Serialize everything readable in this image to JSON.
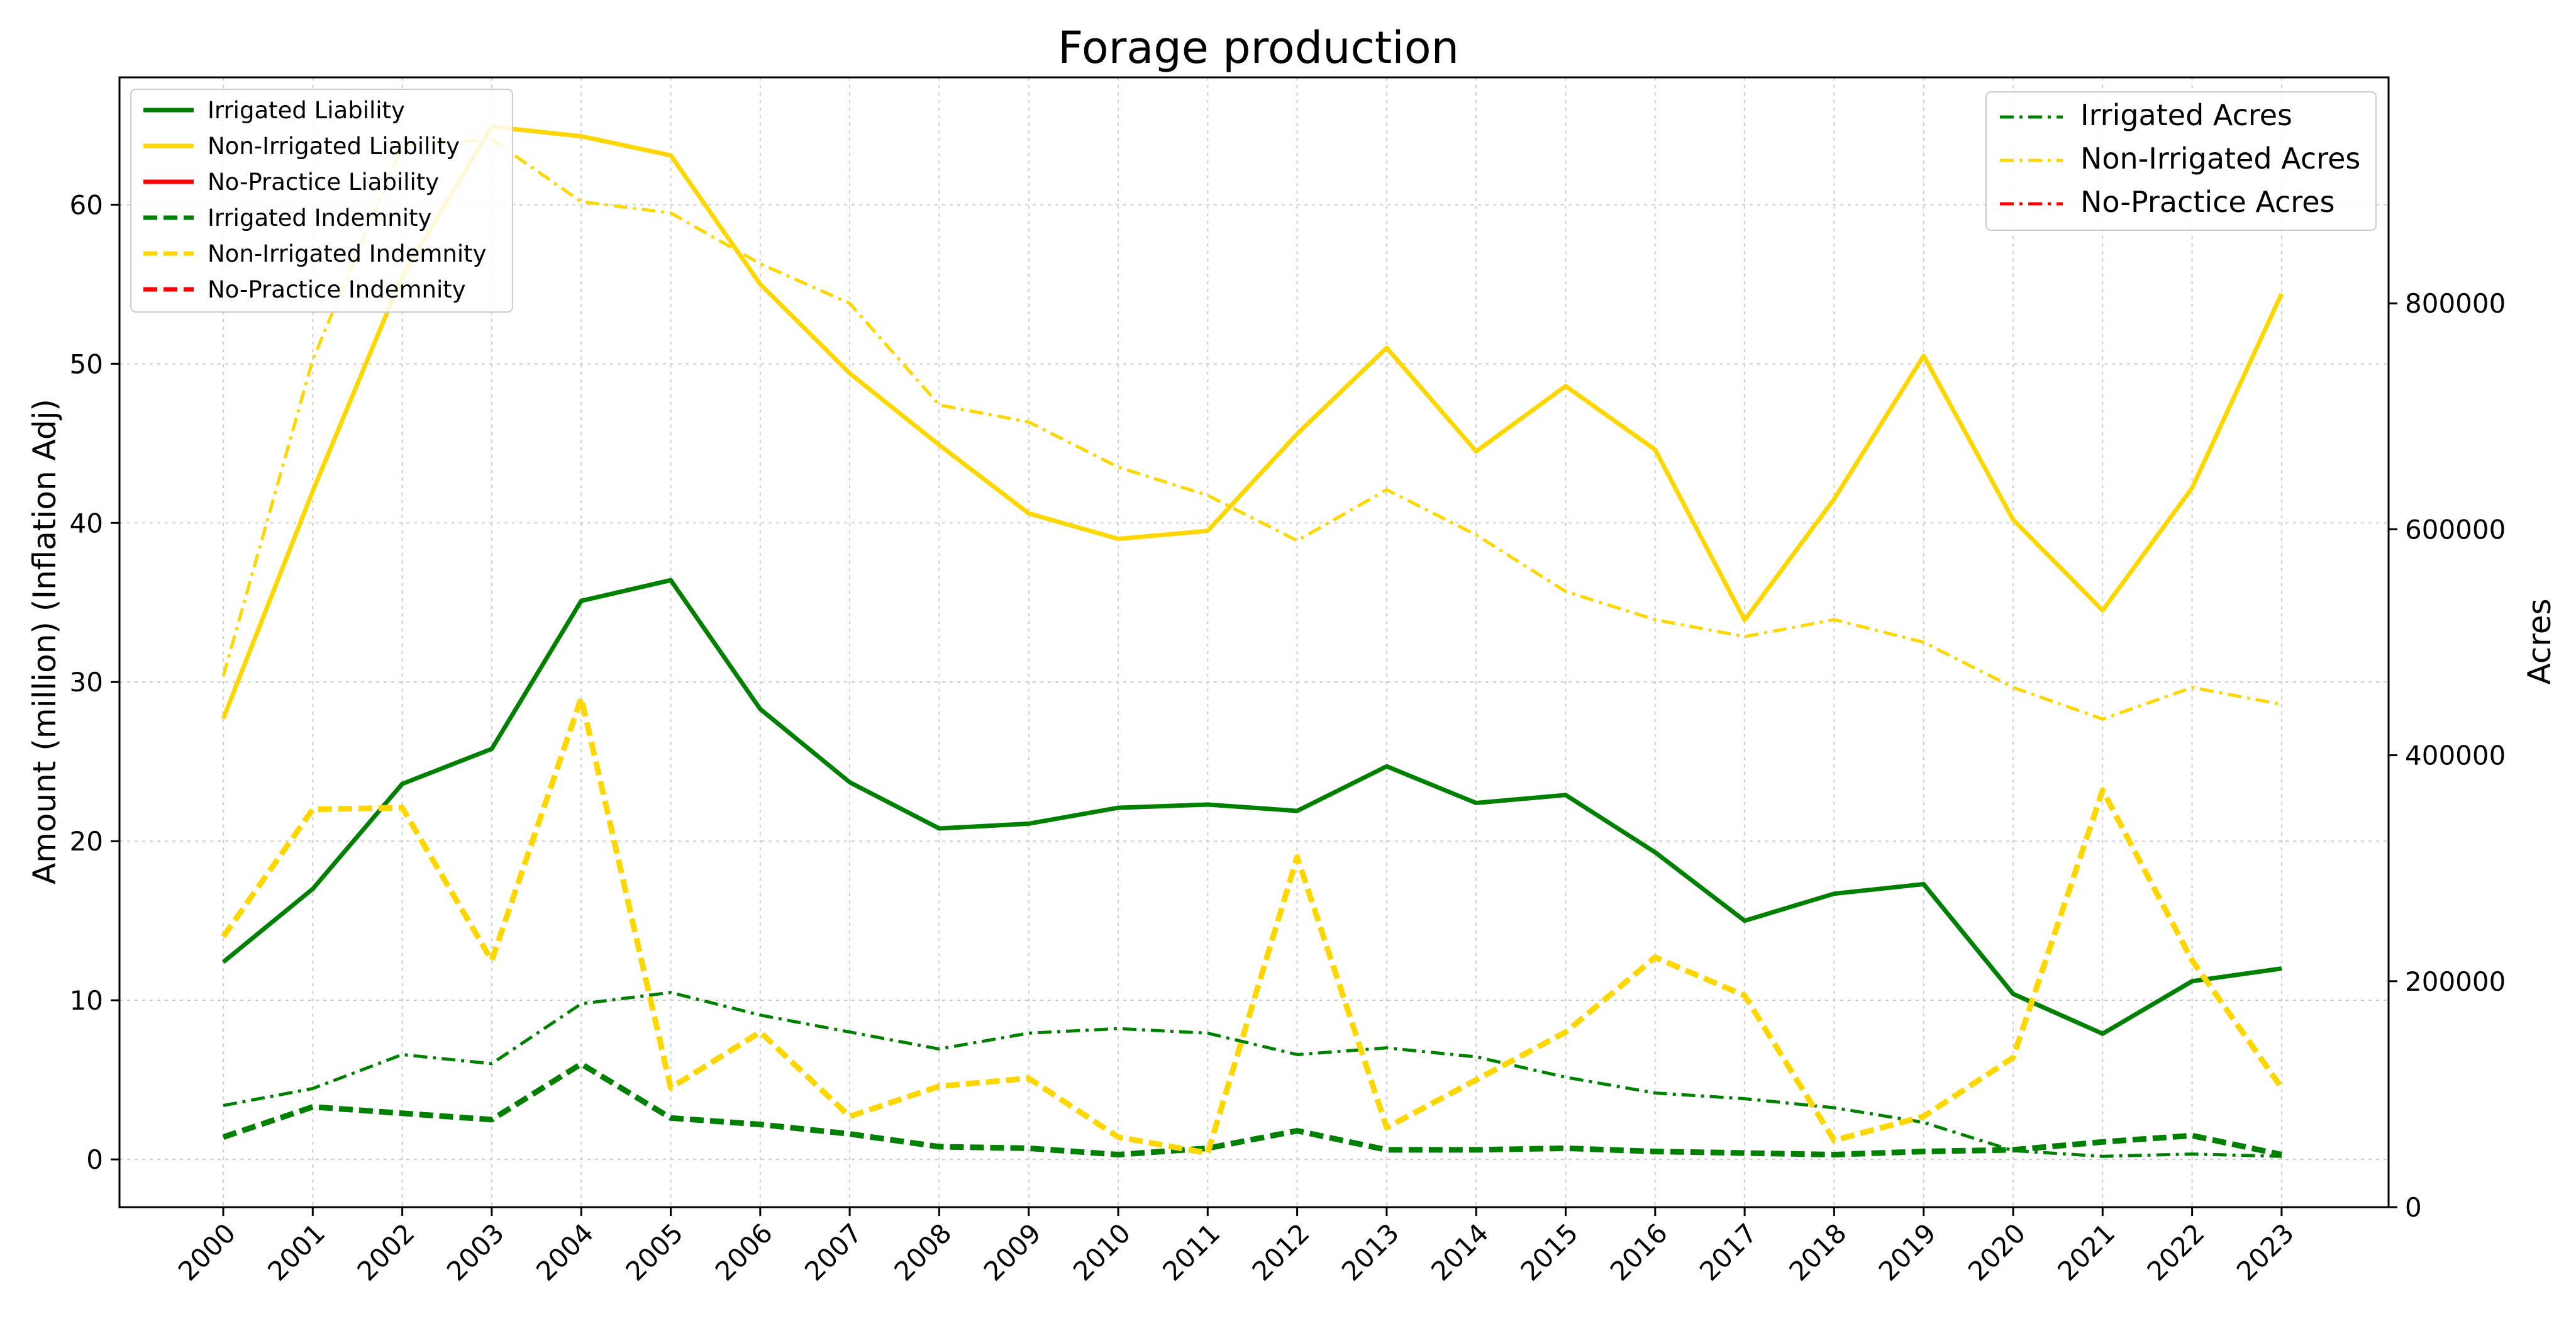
{
  "chart_data": {
    "type": "line",
    "title": "Forage production",
    "xlabel": "",
    "ylabel": "Amount (million) (Inflation Adj)",
    "ylabel_right": "Acres",
    "ylim": [
      -3,
      68
    ],
    "ylim_right": [
      0,
      1000000
    ],
    "yticks": [
      0,
      10,
      20,
      30,
      40,
      50,
      60
    ],
    "yticks_right": [
      0,
      200000,
      400000,
      600000,
      800000
    ],
    "grid": true,
    "x": [
      "2000",
      "2001",
      "2002",
      "2003",
      "2004",
      "2005",
      "2006",
      "2007",
      "2008",
      "2009",
      "2010",
      "2011",
      "2012",
      "2013",
      "2014",
      "2015",
      "2016",
      "2017",
      "2018",
      "2019",
      "2020",
      "2021",
      "2022",
      "2023"
    ],
    "colors": {
      "irrigated": "#008000",
      "non_irrigated": "#FFD700",
      "no_practice": "#FF0000"
    },
    "left_legend_position": "top-left",
    "right_legend_position": "top-right",
    "series_left": [
      {
        "name": "Irrigated Liability",
        "color": "#008000",
        "style": "solid",
        "values": [
          12.4,
          17.0,
          23.6,
          25.8,
          35.1,
          36.4,
          28.3,
          23.7,
          20.8,
          21.1,
          22.1,
          22.3,
          21.9,
          24.7,
          22.4,
          22.9,
          19.3,
          15.0,
          16.7,
          17.3,
          10.4,
          7.9,
          11.2,
          12.0
        ]
      },
      {
        "name": "Non-Irrigated Liability",
        "color": "#FFD700",
        "style": "solid",
        "values": [
          27.7,
          42.0,
          55.5,
          64.9,
          64.3,
          63.1,
          55.0,
          49.4,
          44.9,
          40.6,
          39.0,
          39.5,
          45.6,
          51.0,
          44.5,
          48.6,
          44.6,
          33.9,
          41.5,
          50.5,
          40.2,
          34.5,
          42.2,
          54.4
        ]
      },
      {
        "name": "No-Practice Liability",
        "color": "#FF0000",
        "style": "solid",
        "values": []
      },
      {
        "name": "Irrigated Indemnity",
        "color": "#008000",
        "style": "dashed",
        "values": [
          1.4,
          3.3,
          2.9,
          2.5,
          6.0,
          2.6,
          2.2,
          1.6,
          0.8,
          0.7,
          0.3,
          0.7,
          1.8,
          0.6,
          0.6,
          0.7,
          0.5,
          0.4,
          0.3,
          0.5,
          0.6,
          1.1,
          1.5,
          0.3
        ]
      },
      {
        "name": "Non-Irrigated Indemnity",
        "color": "#FFD700",
        "style": "dashed",
        "values": [
          14.0,
          22.0,
          22.1,
          12.5,
          29.0,
          4.5,
          8.0,
          2.7,
          4.6,
          5.1,
          1.4,
          0.4,
          19.0,
          2.0,
          5.0,
          8.0,
          12.7,
          10.3,
          1.2,
          2.7,
          6.4,
          23.2,
          12.5,
          4.5
        ]
      },
      {
        "name": "No-Practice Indemnity",
        "color": "#FF0000",
        "style": "dashed",
        "values": []
      }
    ],
    "series_right": [
      {
        "name": "Irrigated Acres",
        "color": "#008000",
        "style": "dashdot",
        "values": [
          90000,
          105000,
          135000,
          127000,
          180000,
          190000,
          170000,
          155000,
          140000,
          154000,
          158000,
          154000,
          135000,
          141000,
          133000,
          115000,
          101000,
          96000,
          88000,
          75000,
          50000,
          45000,
          47000,
          45000
        ]
      },
      {
        "name": "Non-Irrigated Acres",
        "color": "#FFD700",
        "style": "dashdot",
        "values": [
          470000,
          750000,
          940000,
          945000,
          890000,
          880000,
          835000,
          800000,
          710000,
          695000,
          655000,
          630000,
          590000,
          635000,
          595000,
          545000,
          520000,
          505000,
          520000,
          500000,
          460000,
          432000,
          460000,
          445000
        ]
      },
      {
        "name": "No-Practice Acres",
        "color": "#FF0000",
        "style": "dashdot",
        "values": []
      }
    ]
  }
}
